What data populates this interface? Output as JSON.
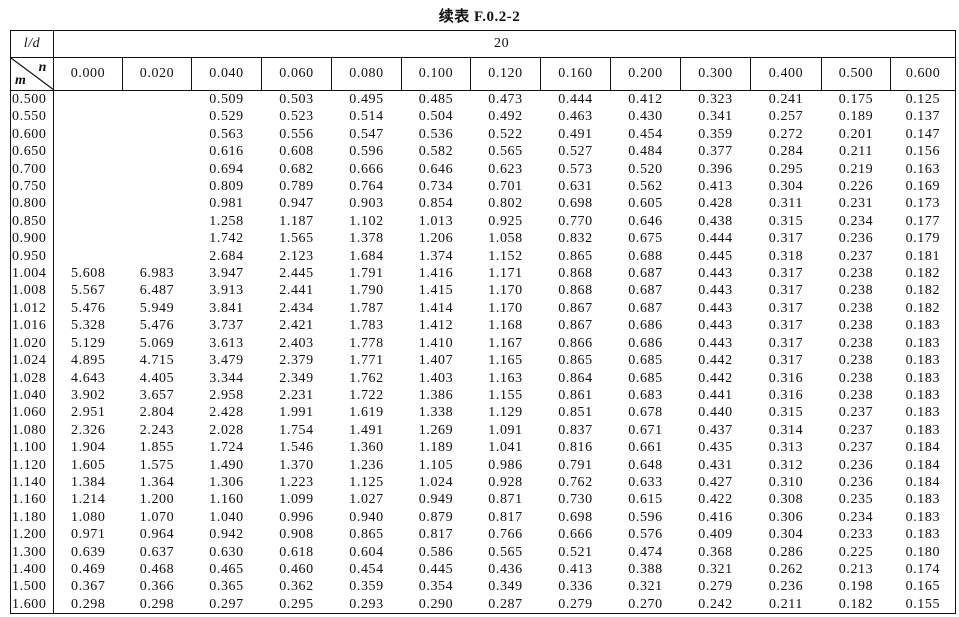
{
  "title": "续表 F.0.2-2",
  "header": {
    "ld_label": "l/d",
    "ld_value": "20",
    "n_label": "n",
    "m_label": "m",
    "n_values": [
      "0.000",
      "0.020",
      "0.040",
      "0.060",
      "0.080",
      "0.100",
      "0.120",
      "0.160",
      "0.200",
      "0.300",
      "0.400",
      "0.500",
      "0.600"
    ]
  },
  "rows": [
    {
      "m": "0.500",
      "v": [
        "",
        "",
        "0.509",
        "0.503",
        "0.495",
        "0.485",
        "0.473",
        "0.444",
        "0.412",
        "0.323",
        "0.241",
        "0.175",
        "0.125"
      ]
    },
    {
      "m": "0.550",
      "v": [
        "",
        "",
        "0.529",
        "0.523",
        "0.514",
        "0.504",
        "0.492",
        "0.463",
        "0.430",
        "0.341",
        "0.257",
        "0.189",
        "0.137"
      ]
    },
    {
      "m": "0.600",
      "v": [
        "",
        "",
        "0.563",
        "0.556",
        "0.547",
        "0.536",
        "0.522",
        "0.491",
        "0.454",
        "0.359",
        "0.272",
        "0.201",
        "0.147"
      ]
    },
    {
      "m": "0.650",
      "v": [
        "",
        "",
        "0.616",
        "0.608",
        "0.596",
        "0.582",
        "0.565",
        "0.527",
        "0.484",
        "0.377",
        "0.284",
        "0.211",
        "0.156"
      ]
    },
    {
      "m": "0.700",
      "v": [
        "",
        "",
        "0.694",
        "0.682",
        "0.666",
        "0.646",
        "0.623",
        "0.573",
        "0.520",
        "0.396",
        "0.295",
        "0.219",
        "0.163"
      ]
    },
    {
      "m": "0.750",
      "v": [
        "",
        "",
        "0.809",
        "0.789",
        "0.764",
        "0.734",
        "0.701",
        "0.631",
        "0.562",
        "0.413",
        "0.304",
        "0.226",
        "0.169"
      ]
    },
    {
      "m": "0.800",
      "v": [
        "",
        "",
        "0.981",
        "0.947",
        "0.903",
        "0.854",
        "0.802",
        "0.698",
        "0.605",
        "0.428",
        "0.311",
        "0.231",
        "0.173"
      ]
    },
    {
      "m": "0.850",
      "v": [
        "",
        "",
        "1.258",
        "1.187",
        "1.102",
        "1.013",
        "0.925",
        "0.770",
        "0.646",
        "0.438",
        "0.315",
        "0.234",
        "0.177"
      ]
    },
    {
      "m": "0.900",
      "v": [
        "",
        "",
        "1.742",
        "1.565",
        "1.378",
        "1.206",
        "1.058",
        "0.832",
        "0.675",
        "0.444",
        "0.317",
        "0.236",
        "0.179"
      ]
    },
    {
      "m": "0.950",
      "v": [
        "",
        "",
        "2.684",
        "2.123",
        "1.684",
        "1.374",
        "1.152",
        "0.865",
        "0.688",
        "0.445",
        "0.318",
        "0.237",
        "0.181"
      ]
    },
    {
      "m": "1.004",
      "v": [
        "5.608",
        "6.983",
        "3.947",
        "2.445",
        "1.791",
        "1.416",
        "1.171",
        "0.868",
        "0.687",
        "0.443",
        "0.317",
        "0.238",
        "0.182"
      ]
    },
    {
      "m": "1.008",
      "v": [
        "5.567",
        "6.487",
        "3.913",
        "2.441",
        "1.790",
        "1.415",
        "1.170",
        "0.868",
        "0.687",
        "0.443",
        "0.317",
        "0.238",
        "0.182"
      ]
    },
    {
      "m": "1.012",
      "v": [
        "5.476",
        "5.949",
        "3.841",
        "2.434",
        "1.787",
        "1.414",
        "1.170",
        "0.867",
        "0.687",
        "0.443",
        "0.317",
        "0.238",
        "0.182"
      ]
    },
    {
      "m": "1.016",
      "v": [
        "5.328",
        "5.476",
        "3.737",
        "2.421",
        "1.783",
        "1.412",
        "1.168",
        "0.867",
        "0.686",
        "0.443",
        "0.317",
        "0.238",
        "0.183"
      ]
    },
    {
      "m": "1.020",
      "v": [
        "5.129",
        "5.069",
        "3.613",
        "2.403",
        "1.778",
        "1.410",
        "1.167",
        "0.866",
        "0.686",
        "0.443",
        "0.317",
        "0.238",
        "0.183"
      ]
    },
    {
      "m": "1.024",
      "v": [
        "4.895",
        "4.715",
        "3.479",
        "2.379",
        "1.771",
        "1.407",
        "1.165",
        "0.865",
        "0.685",
        "0.442",
        "0.317",
        "0.238",
        "0.183"
      ]
    },
    {
      "m": "1.028",
      "v": [
        "4.643",
        "4.405",
        "3.344",
        "2.349",
        "1.762",
        "1.403",
        "1.163",
        "0.864",
        "0.685",
        "0.442",
        "0.316",
        "0.238",
        "0.183"
      ]
    },
    {
      "m": "1.040",
      "v": [
        "3.902",
        "3.657",
        "2.958",
        "2.231",
        "1.722",
        "1.386",
        "1.155",
        "0.861",
        "0.683",
        "0.441",
        "0.316",
        "0.238",
        "0.183"
      ]
    },
    {
      "m": "1.060",
      "v": [
        "2.951",
        "2.804",
        "2.428",
        "1.991",
        "1.619",
        "1.338",
        "1.129",
        "0.851",
        "0.678",
        "0.440",
        "0.315",
        "0.237",
        "0.183"
      ]
    },
    {
      "m": "1.080",
      "v": [
        "2.326",
        "2.243",
        "2.028",
        "1.754",
        "1.491",
        "1.269",
        "1.091",
        "0.837",
        "0.671",
        "0.437",
        "0.314",
        "0.237",
        "0.183"
      ]
    },
    {
      "m": "1.100",
      "v": [
        "1.904",
        "1.855",
        "1.724",
        "1.546",
        "1.360",
        "1.189",
        "1.041",
        "0.816",
        "0.661",
        "0.435",
        "0.313",
        "0.237",
        "0.184"
      ]
    },
    {
      "m": "1.120",
      "v": [
        "1.605",
        "1.575",
        "1.490",
        "1.370",
        "1.236",
        "1.105",
        "0.986",
        "0.791",
        "0.648",
        "0.431",
        "0.312",
        "0.236",
        "0.184"
      ]
    },
    {
      "m": "1.140",
      "v": [
        "1.384",
        "1.364",
        "1.306",
        "1.223",
        "1.125",
        "1.024",
        "0.928",
        "0.762",
        "0.633",
        "0.427",
        "0.310",
        "0.236",
        "0.184"
      ]
    },
    {
      "m": "1.160",
      "v": [
        "1.214",
        "1.200",
        "1.160",
        "1.099",
        "1.027",
        "0.949",
        "0.871",
        "0.730",
        "0.615",
        "0.422",
        "0.308",
        "0.235",
        "0.183"
      ]
    },
    {
      "m": "1.180",
      "v": [
        "1.080",
        "1.070",
        "1.040",
        "0.996",
        "0.940",
        "0.879",
        "0.817",
        "0.698",
        "0.596",
        "0.416",
        "0.306",
        "0.234",
        "0.183"
      ]
    },
    {
      "m": "1.200",
      "v": [
        "0.971",
        "0.964",
        "0.942",
        "0.908",
        "0.865",
        "0.817",
        "0.766",
        "0.666",
        "0.576",
        "0.409",
        "0.304",
        "0.233",
        "0.183"
      ]
    },
    {
      "m": "1.300",
      "v": [
        "0.639",
        "0.637",
        "0.630",
        "0.618",
        "0.604",
        "0.586",
        "0.565",
        "0.521",
        "0.474",
        "0.368",
        "0.286",
        "0.225",
        "0.180"
      ]
    },
    {
      "m": "1.400",
      "v": [
        "0.469",
        "0.468",
        "0.465",
        "0.460",
        "0.454",
        "0.445",
        "0.436",
        "0.413",
        "0.388",
        "0.321",
        "0.262",
        "0.213",
        "0.174"
      ]
    },
    {
      "m": "1.500",
      "v": [
        "0.367",
        "0.366",
        "0.365",
        "0.362",
        "0.359",
        "0.354",
        "0.349",
        "0.336",
        "0.321",
        "0.279",
        "0.236",
        "0.198",
        "0.165"
      ]
    },
    {
      "m": "1.600",
      "v": [
        "0.298",
        "0.298",
        "0.297",
        "0.295",
        "0.293",
        "0.290",
        "0.287",
        "0.279",
        "0.270",
        "0.242",
        "0.211",
        "0.182",
        "0.155"
      ]
    }
  ]
}
